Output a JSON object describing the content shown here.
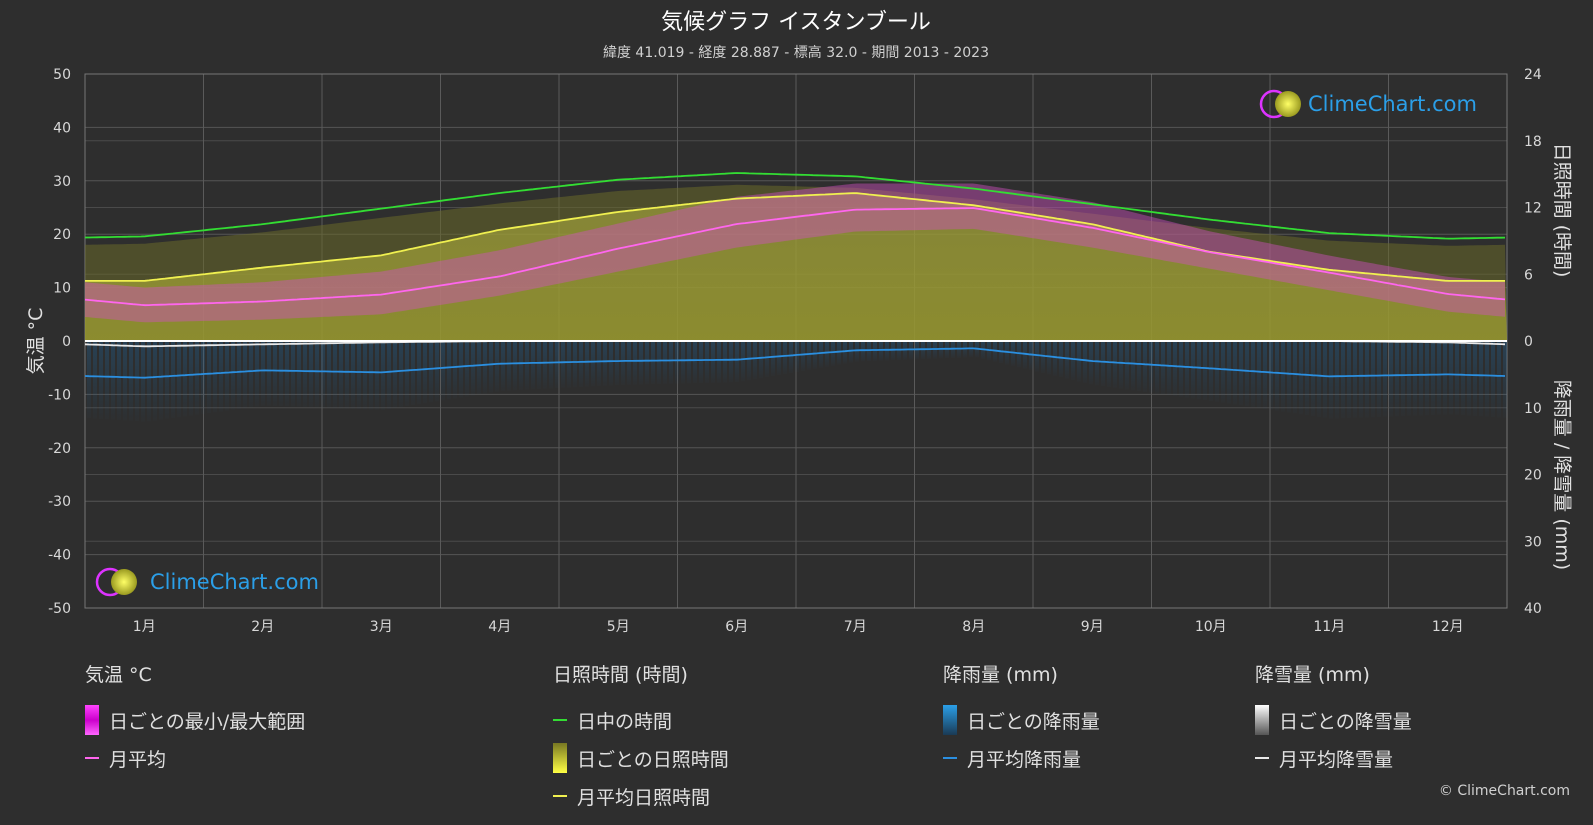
{
  "title": "気候グラフ イスタンブール",
  "subtitle": "緯度 41.019 - 経度 28.887 - 標高 32.0 - 期間 2013 - 2023",
  "brand": "ClimeChart.com",
  "copyright": "© ClimeChart.com",
  "chart_data": {
    "type": "area",
    "categories": [
      "1月",
      "2月",
      "3月",
      "4月",
      "5月",
      "6月",
      "7月",
      "8月",
      "9月",
      "10月",
      "11月",
      "12月"
    ],
    "y_left": {
      "label": "気温 °C",
      "range": [
        -50,
        50
      ],
      "ticks": [
        50,
        40,
        30,
        20,
        10,
        0,
        -10,
        -20,
        -30,
        -40,
        -50
      ]
    },
    "y_right_top": {
      "label": "日照時間 (時間)",
      "range": [
        0,
        24
      ],
      "ticks": [
        24,
        18,
        12,
        6,
        0
      ]
    },
    "y_right_bottom": {
      "label": "降雨量 / 降雪量 (mm)",
      "range": [
        0,
        40
      ],
      "ticks": [
        10,
        20,
        30,
        40
      ]
    },
    "grid": true,
    "series": [
      {
        "name": "日中の時間",
        "unit": "hours",
        "color": "#33dd33",
        "values": [
          9.4,
          10.5,
          11.9,
          13.3,
          14.5,
          15.1,
          14.8,
          13.7,
          12.3,
          10.9,
          9.7,
          9.2
        ]
      },
      {
        "name": "月平均日照時間",
        "unit": "hours",
        "color": "#f0f050",
        "values": [
          5.4,
          6.6,
          7.7,
          10.0,
          11.6,
          12.8,
          13.3,
          12.2,
          10.5,
          8.0,
          6.4,
          5.4
        ]
      },
      {
        "name": "月平均",
        "unit": "°C",
        "color": "#ff66ee",
        "values": [
          6.7,
          7.4,
          8.7,
          12.1,
          17.3,
          21.9,
          24.6,
          24.9,
          21.2,
          16.6,
          12.8,
          8.8
        ]
      },
      {
        "name": "月平均降雨量",
        "unit": "mm",
        "color": "#2b8fe0",
        "values": [
          5.5,
          4.4,
          4.7,
          3.4,
          3.0,
          2.8,
          1.4,
          1.1,
          3.0,
          4.1,
          5.3,
          5.0
        ]
      },
      {
        "name": "月平均降雪量",
        "unit": "mm",
        "color": "#e8e8e8",
        "values": [
          0.8,
          0.5,
          0.2,
          0.0,
          0.0,
          0.0,
          0.0,
          0.0,
          0.0,
          0.0,
          0.0,
          0.2
        ]
      }
    ],
    "daily_range_monthly": {
      "name": "日ごとの最小/最大範囲",
      "min": [
        3.5,
        4.0,
        5.0,
        8.5,
        13.0,
        17.5,
        20.5,
        21.0,
        17.5,
        13.5,
        9.5,
        5.5
      ],
      "max": [
        10.0,
        11.0,
        13.0,
        17.0,
        22.0,
        27.0,
        29.5,
        29.5,
        26.0,
        20.5,
        16.0,
        12.0
      ]
    }
  },
  "legend": {
    "temperature": {
      "title": "気温 °C",
      "items": [
        "日ごとの最小/最大範囲",
        "月平均"
      ]
    },
    "sunshine": {
      "title": "日照時間 (時間)",
      "items": [
        "日中の時間",
        "日ごとの日照時間",
        "月平均日照時間"
      ]
    },
    "rain": {
      "title": "降雨量 (mm)",
      "items": [
        "日ごとの降雨量",
        "月平均降雨量"
      ]
    },
    "snow": {
      "title": "降雪量 (mm)",
      "items": [
        "日ごとの降雪量",
        "月平均降雪量"
      ]
    }
  },
  "colors": {
    "background": "#2e2e2e",
    "daylight": "#33dd33",
    "sunshine": "#f0f050",
    "temp_range": "#e000d0",
    "temp_avg": "#ff66ee",
    "rain": "#2b8fe0",
    "snow": "#e8e8e8",
    "brand": "#2b9fe8"
  }
}
